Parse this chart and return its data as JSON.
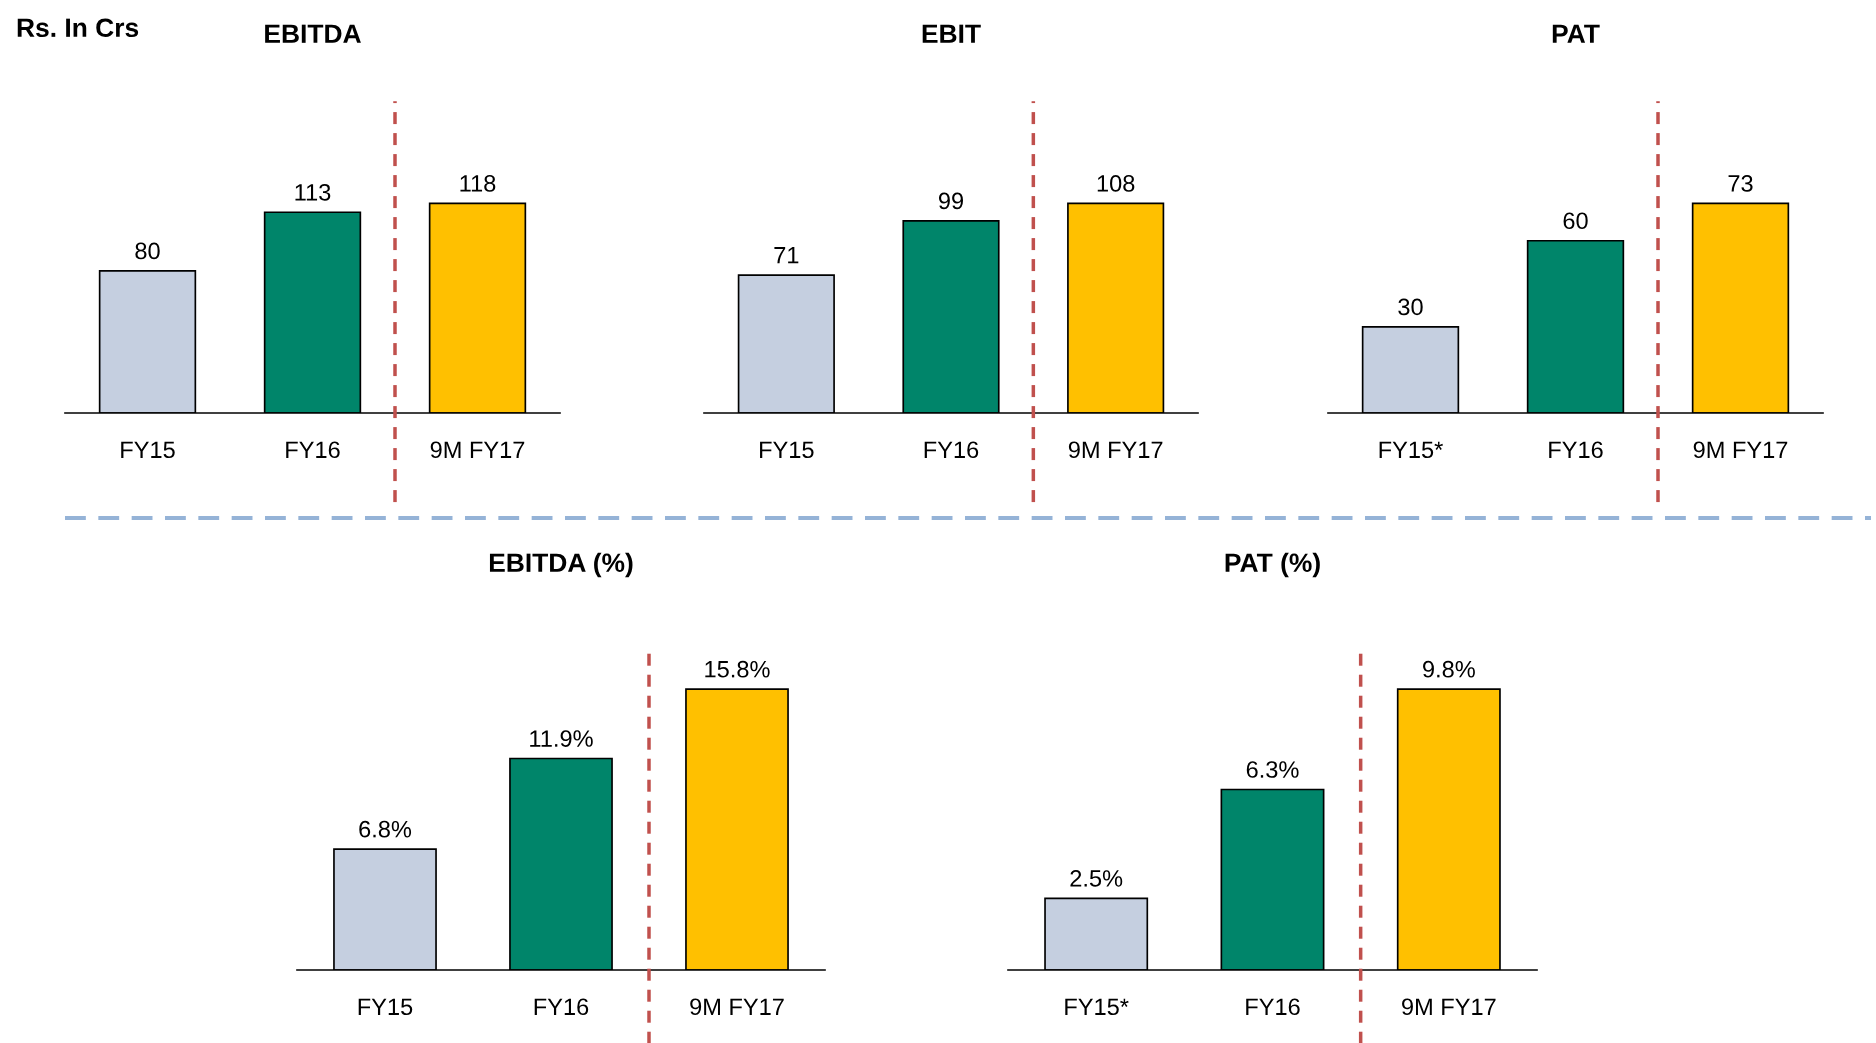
{
  "chart_data": [
    {
      "type": "bar",
      "title": "EBITDA",
      "categories": [
        "FY15",
        "FY16",
        "9M FY17"
      ],
      "values": [
        80,
        113,
        118
      ],
      "colors": [
        "#c5cfe0",
        "#00856a",
        "#ffc000"
      ],
      "data_labels": true,
      "tick_labels": "x",
      "annotations": [
        "Rs. In Crs"
      ]
    },
    {
      "type": "bar",
      "title": "EBIT",
      "categories": [
        "FY15",
        "FY16",
        "9M FY17"
      ],
      "values": [
        71,
        99,
        108
      ],
      "colors": [
        "#c5cfe0",
        "#00856a",
        "#ffc000"
      ],
      "data_labels": true,
      "tick_labels": "x"
    },
    {
      "type": "bar",
      "title": "PAT",
      "categories": [
        "FY15*",
        "FY16",
        "9M FY17"
      ],
      "values": [
        30,
        60,
        73
      ],
      "colors": [
        "#c5cfe0",
        "#00856a",
        "#ffc000"
      ],
      "data_labels": true,
      "tick_labels": "x"
    },
    {
      "type": "bar",
      "title": "EBITDA (%)",
      "categories": [
        "FY15",
        "FY16",
        "9M FY17"
      ],
      "values": [
        6.8,
        11.9,
        15.8
      ],
      "value_labels": [
        "6.8%",
        "11.9%",
        "15.8%"
      ],
      "colors": [
        "#c5cfe0",
        "#00856a",
        "#ffc000"
      ],
      "tick_labels": "x"
    },
    {
      "type": "bar",
      "title": "PAT (%)",
      "categories": [
        "FY15*",
        "FY16",
        "9M FY17"
      ],
      "values": [
        2.5,
        6.3,
        9.8
      ],
      "value_labels": [
        "2.5%",
        "6.3%",
        "9.8%"
      ],
      "colors": [
        "#c5cfe0",
        "#00856a",
        "#ffc000"
      ],
      "tick_labels": "x"
    }
  ]
}
